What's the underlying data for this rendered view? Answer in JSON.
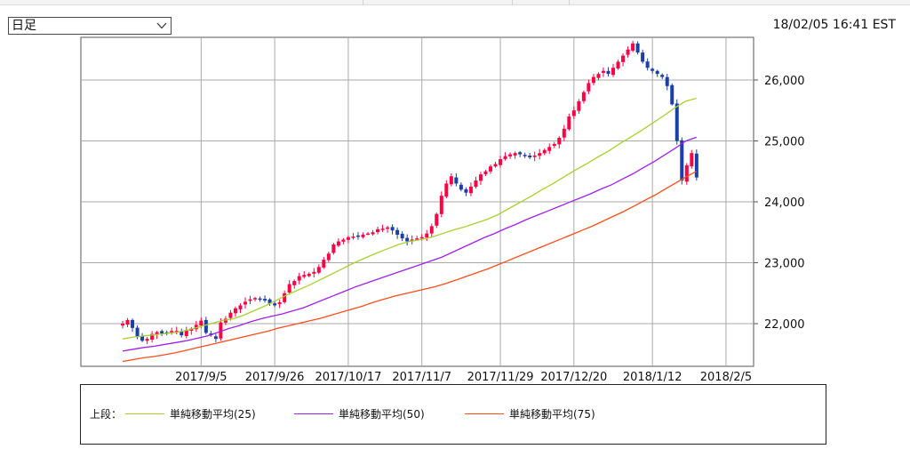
{
  "period_select": {
    "label": "日足"
  },
  "timestamp": "18/02/05 16:41 EST",
  "colors": {
    "up": "#ff0044",
    "down": "#1a3fa8",
    "ma25": "#a6d22e",
    "ma50": "#a020f0",
    "ma75": "#ff4d1a",
    "grid": "#a9a9a9"
  },
  "legend": {
    "title": "上段：",
    "items": [
      {
        "label": "単純移動平均(25)",
        "color": "#a6d22e"
      },
      {
        "label": "単純移動平均(50)",
        "color": "#a020f0"
      },
      {
        "label": "単純移動平均(75)",
        "color": "#ff4d1a"
      }
    ]
  },
  "chart_data": {
    "type": "line",
    "ylim": [
      21300,
      26700
    ],
    "y_ticks": [
      22000,
      23000,
      24000,
      25000,
      26000
    ],
    "y_tick_labels": [
      "22,000",
      "23,000",
      "24,000",
      "25,000",
      "26,000"
    ],
    "x_tick_labels": [
      "2017/9/5",
      "2017/9/26",
      "2017/10/17",
      "2017/11/7",
      "2017/11/29",
      "2017/12/20",
      "2018/1/12",
      "2018/2/5"
    ],
    "n_sessions": 118,
    "x_tick_index": [
      16,
      31,
      46,
      61,
      77,
      92,
      108,
      123
    ],
    "candle_close": [
      22000,
      22060,
      21930,
      21780,
      21720,
      21750,
      21830,
      21860,
      21840,
      21850,
      21880,
      21880,
      21810,
      21890,
      21920,
      21980,
      22050,
      21850,
      21810,
      21750,
      22020,
      22080,
      22180,
      22250,
      22300,
      22360,
      22400,
      22420,
      22400,
      22380,
      22330,
      22300,
      22350,
      22500,
      22650,
      22700,
      22780,
      22800,
      22820,
      22850,
      22930,
      23050,
      23150,
      23300,
      23350,
      23380,
      23420,
      23430,
      23430,
      23460,
      23480,
      23500,
      23550,
      23560,
      23580,
      23530,
      23460,
      23400,
      23350,
      23380,
      23400,
      23420,
      23480,
      23600,
      23800,
      24100,
      24300,
      24420,
      24300,
      24200,
      24150,
      24250,
      24350,
      24450,
      24500,
      24580,
      24620,
      24700,
      24750,
      24780,
      24800,
      24780,
      24750,
      24730,
      24760,
      24800,
      24850,
      24900,
      24950,
      25050,
      25200,
      25400,
      25500,
      25650,
      25800,
      25950,
      26050,
      26100,
      26150,
      26100,
      26200,
      26300,
      26400,
      26500,
      26600,
      26450,
      26300,
      26200,
      26150,
      26100,
      26050,
      25900,
      25600,
      25000,
      24350,
      24600,
      24800,
      24400
    ],
    "series": [
      {
        "name": "単純移動平均(25)",
        "values": [
          21750,
          21780,
          21800,
          21820,
          21840,
          21860,
          21900,
          21950,
          22000,
          22050,
          22080,
          22140,
          22220,
          22300,
          22390,
          22480,
          22560,
          22640,
          22730,
          22820,
          22910,
          23000,
          23080,
          23160,
          23230,
          23300,
          23350,
          23380,
          23420,
          23480,
          23540,
          23590,
          23650,
          23710,
          23790,
          23890,
          23990,
          24090,
          24200,
          24300,
          24410,
          24520,
          24620,
          24730,
          24830,
          24950,
          25060,
          25170,
          25290,
          25410,
          25540,
          25650,
          25700
        ]
      },
      {
        "name": "単純移動平均(50)",
        "values": [
          21550,
          21580,
          21610,
          21630,
          21660,
          21690,
          21720,
          21760,
          21800,
          21860,
          21920,
          21970,
          22030,
          22080,
          22120,
          22160,
          22210,
          22260,
          22330,
          22400,
          22470,
          22540,
          22610,
          22670,
          22730,
          22790,
          22850,
          22910,
          22970,
          23030,
          23090,
          23170,
          23250,
          23330,
          23410,
          23480,
          23560,
          23630,
          23710,
          23780,
          23850,
          23920,
          23990,
          24060,
          24130,
          24210,
          24280,
          24370,
          24460,
          24560,
          24660,
          24770,
          24880,
          25000,
          25060
        ]
      },
      {
        "name": "単純移動平均(75)",
        "values": [
          21380,
          21410,
          21440,
          21460,
          21490,
          21520,
          21560,
          21600,
          21640,
          21680,
          21720,
          21760,
          21800,
          21840,
          21880,
          21930,
          21970,
          22010,
          22050,
          22090,
          22140,
          22190,
          22240,
          22290,
          22350,
          22400,
          22450,
          22490,
          22530,
          22570,
          22610,
          22660,
          22720,
          22780,
          22840,
          22900,
          22970,
          23040,
          23110,
          23180,
          23250,
          23320,
          23390,
          23460,
          23530,
          23600,
          23680,
          23760,
          23840,
          23930,
          24020,
          24110,
          24210,
          24310,
          24410,
          24500
        ]
      }
    ]
  }
}
